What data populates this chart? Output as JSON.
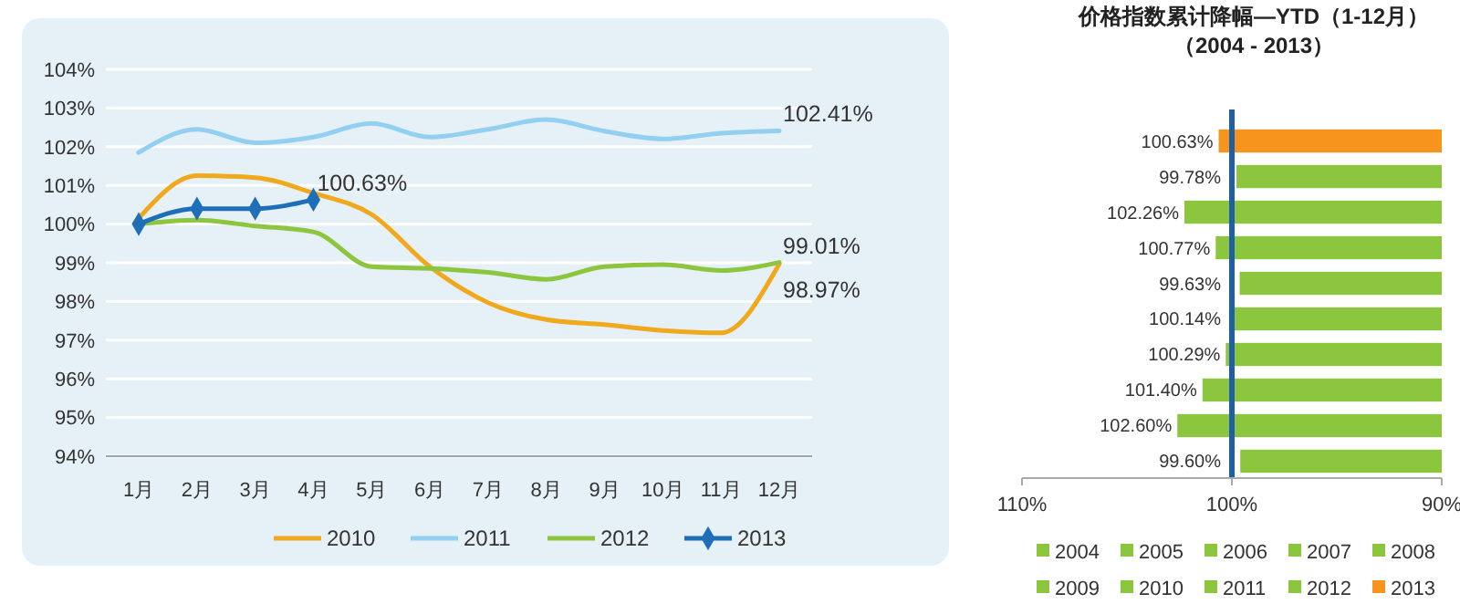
{
  "chart_data": [
    {
      "type": "line",
      "categories": [
        "1月",
        "2月",
        "3月",
        "4月",
        "5月",
        "6月",
        "7月",
        "8月",
        "9月",
        "10月",
        "11月",
        "12月"
      ],
      "series": [
        {
          "name": "2010",
          "color": "#f0a81c",
          "marker": "none",
          "values": [
            100.15,
            101.25,
            101.2,
            100.8,
            100.25,
            98.9,
            97.97,
            97.53,
            97.4,
            97.25,
            97.19,
            98.97
          ]
        },
        {
          "name": "2011",
          "color": "#92cff0",
          "marker": "none",
          "values": [
            101.85,
            102.45,
            102.1,
            102.25,
            102.6,
            102.25,
            102.45,
            102.7,
            102.4,
            102.2,
            102.35,
            102.41
          ]
        },
        {
          "name": "2012",
          "color": "#8cc63f",
          "marker": "none",
          "values": [
            100.0,
            100.1,
            99.95,
            99.8,
            98.9,
            98.85,
            98.75,
            98.57,
            98.9,
            98.95,
            98.8,
            99.01
          ]
        },
        {
          "name": "2013",
          "color": "#1f6fb8",
          "marker": "diamond",
          "values": [
            100.0,
            100.4,
            100.4,
            100.63,
            null,
            null,
            null,
            null,
            null,
            null,
            null,
            null
          ]
        }
      ],
      "ylim": [
        94,
        104
      ],
      "yticks": [
        {
          "value": 94,
          "label": "94%"
        },
        {
          "value": 95,
          "label": "95%"
        },
        {
          "value": 96,
          "label": "96%"
        },
        {
          "value": 97,
          "label": "97%"
        },
        {
          "value": 98,
          "label": "98%"
        },
        {
          "value": 99,
          "label": "99%"
        },
        {
          "value": 100,
          "label": "100%"
        },
        {
          "value": 101,
          "label": "101%"
        },
        {
          "value": 102,
          "label": "102%"
        },
        {
          "value": 103,
          "label": "103%"
        },
        {
          "value": 104,
          "label": "104%"
        }
      ],
      "grid": "y",
      "legend": "bottom",
      "annotations": [
        {
          "text": "100.63%",
          "x": "4月",
          "y": 100.63
        },
        {
          "text": "102.41%",
          "x": "12月",
          "y": 102.41
        },
        {
          "text": "99.01%",
          "x": "12月",
          "y": 99.01
        },
        {
          "text": "98.97%",
          "x": "12月",
          "y": 98.97
        }
      ]
    },
    {
      "type": "bar",
      "orientation": "horizontal",
      "title": "价格指数累计降幅—YTD（1-12月）",
      "subtitle": "（2004 - 2013）",
      "categories": [
        null,
        null,
        null,
        null,
        null,
        null,
        null,
        null,
        null,
        null
      ],
      "series": [
        {
          "name": "2004",
          "color": "#8cc63f",
          "values": [
            null,
            null,
            null,
            null,
            null,
            null,
            null,
            null,
            null,
            99.6
          ],
          "value_labels": [
            null,
            null,
            null,
            null,
            null,
            null,
            null,
            null,
            null,
            "99.60%"
          ]
        },
        {
          "name": "2005",
          "color": "#8cc63f",
          "values": [
            null,
            null,
            null,
            null,
            null,
            null,
            null,
            null,
            102.6,
            null
          ],
          "value_labels": [
            null,
            null,
            null,
            null,
            null,
            null,
            null,
            null,
            "102.60%",
            null
          ]
        },
        {
          "name": "2006",
          "color": "#8cc63f",
          "values": [
            null,
            null,
            null,
            null,
            null,
            null,
            null,
            101.4,
            null,
            null
          ],
          "value_labels": [
            null,
            null,
            null,
            null,
            null,
            null,
            null,
            "101.40%",
            null,
            null
          ]
        },
        {
          "name": "2007",
          "color": "#8cc63f",
          "values": [
            null,
            null,
            null,
            null,
            null,
            null,
            100.29,
            null,
            null,
            null
          ],
          "value_labels": [
            null,
            null,
            null,
            null,
            null,
            null,
            "100.29%",
            null,
            null,
            null
          ]
        },
        {
          "name": "2008",
          "color": "#8cc63f",
          "values": [
            null,
            null,
            null,
            null,
            null,
            100.14,
            null,
            null,
            null,
            null
          ],
          "value_labels": [
            null,
            null,
            null,
            null,
            null,
            "100.14%",
            null,
            null,
            null,
            null
          ]
        },
        {
          "name": "2009",
          "color": "#8cc63f",
          "values": [
            null,
            null,
            null,
            null,
            99.63,
            null,
            null,
            null,
            null,
            null
          ],
          "value_labels": [
            null,
            null,
            null,
            null,
            "99.63%",
            null,
            null,
            null,
            null,
            null
          ]
        },
        {
          "name": "2010",
          "color": "#8cc63f",
          "values": [
            null,
            null,
            null,
            100.77,
            null,
            null,
            null,
            null,
            null,
            null
          ],
          "value_labels": [
            null,
            null,
            null,
            "100.77%",
            null,
            null,
            null,
            null,
            null,
            null
          ]
        },
        {
          "name": "2011",
          "color": "#8cc63f",
          "values": [
            null,
            null,
            102.26,
            null,
            null,
            null,
            null,
            null,
            null,
            null
          ],
          "value_labels": [
            null,
            null,
            "102.26%",
            null,
            null,
            null,
            null,
            null,
            null,
            null
          ]
        },
        {
          "name": "2012",
          "color": "#8cc63f",
          "values": [
            null,
            99.78,
            null,
            null,
            null,
            null,
            null,
            null,
            null,
            null
          ],
          "value_labels": [
            null,
            "99.78%",
            null,
            null,
            null,
            null,
            null,
            null,
            null,
            null
          ]
        },
        {
          "name": "2013",
          "color": "#f7941d",
          "values": [
            100.63,
            null,
            null,
            null,
            null,
            null,
            null,
            null,
            null,
            null
          ],
          "value_labels": [
            "100.63%",
            null,
            null,
            null,
            null,
            null,
            null,
            null,
            null,
            null
          ]
        }
      ],
      "xlim": [
        110,
        90
      ],
      "xticks": [
        {
          "value": 110,
          "label": "110%"
        },
        {
          "value": 100,
          "label": "100%"
        },
        {
          "value": 90,
          "label": "90%"
        }
      ],
      "tick_labels": "x",
      "legend": "bottom",
      "ref_lines": [
        {
          "axis": "x",
          "value": 100,
          "color": "#1f5fa8"
        }
      ]
    }
  ]
}
